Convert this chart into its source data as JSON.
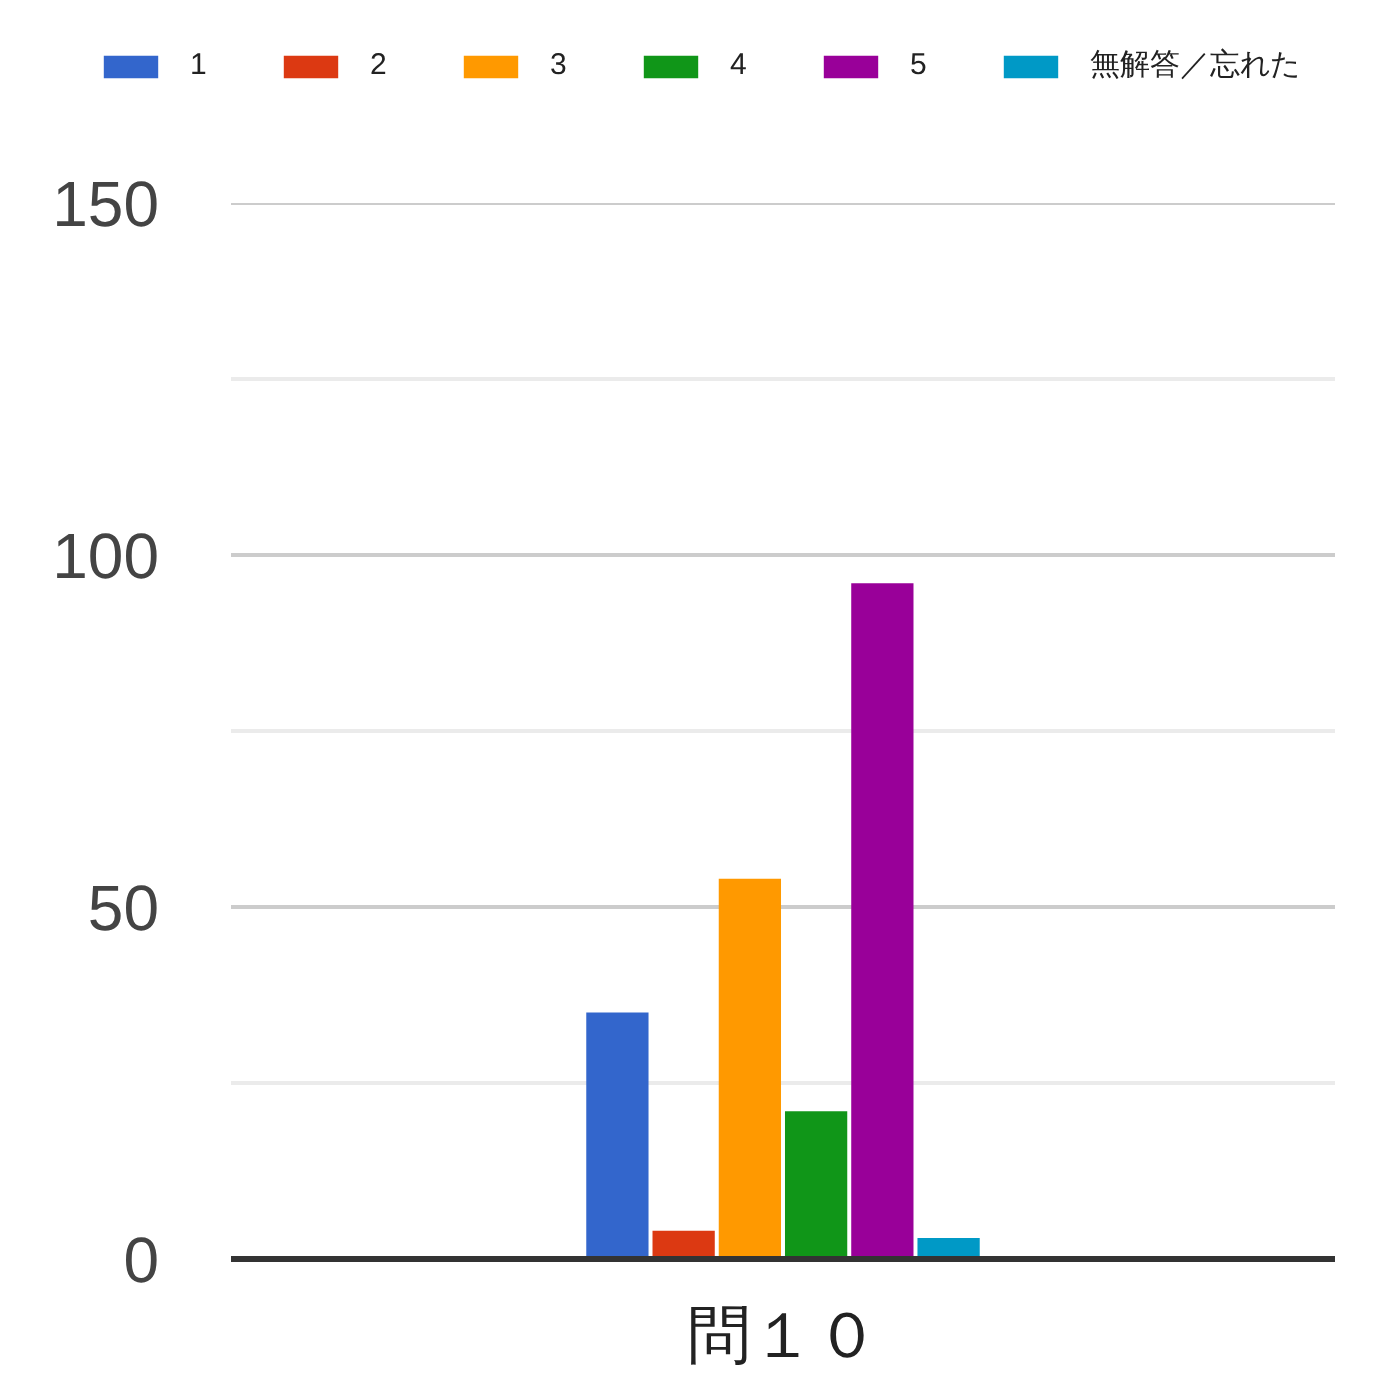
{
  "chart_data": {
    "type": "bar",
    "categories": [
      "問１０"
    ],
    "series": [
      {
        "name": "1",
        "color": "#3366cc",
        "values": [
          35
        ]
      },
      {
        "name": "2",
        "color": "#dc3912",
        "values": [
          4
        ]
      },
      {
        "name": "3",
        "color": "#ff9900",
        "values": [
          54
        ]
      },
      {
        "name": "4",
        "color": "#109618",
        "values": [
          21
        ]
      },
      {
        "name": "5",
        "color": "#990099",
        "values": [
          96
        ]
      },
      {
        "name": "無解答／忘れた",
        "color": "#0099c6",
        "values": [
          3
        ]
      }
    ],
    "ylim": [
      0,
      150
    ],
    "yticks": [
      0,
      {
        "value": 25,
        "label": null
      },
      50,
      {
        "value": 75,
        "label": null
      },
      100,
      {
        "value": 125,
        "label": null
      },
      150
    ],
    "grid": "y",
    "legend": "top"
  }
}
